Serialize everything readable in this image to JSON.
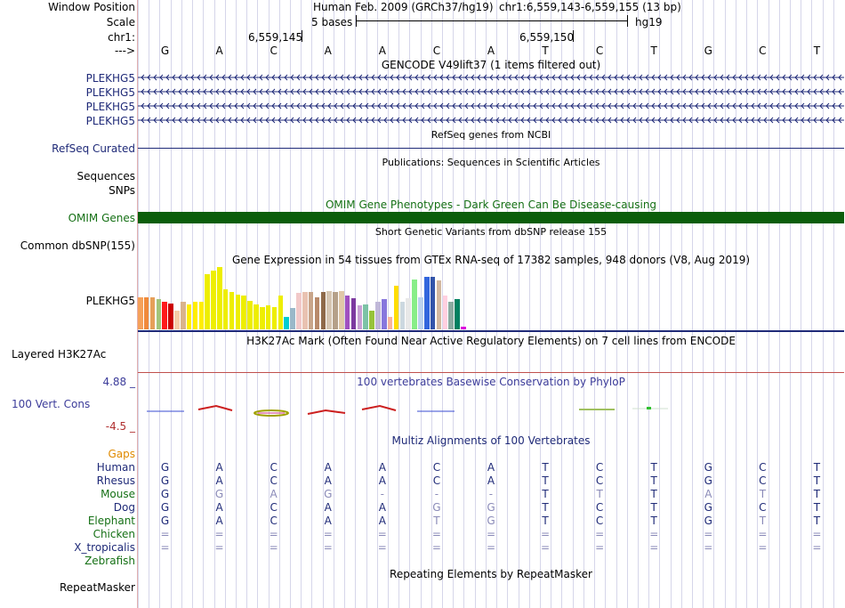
{
  "colors": {
    "navy": "#1f2a78",
    "omim_green": "#0b5e0b",
    "gaps_orange": "#e08a00",
    "green_label": "#157015",
    "red_line": "#c0504d",
    "phylop_label": "#3c3c9a",
    "grid": "#d6d6ea"
  },
  "labels": {
    "window_position": "Window Position",
    "scale": "Scale",
    "chrom": "chr1:",
    "arrow": "--->",
    "gencode_rows": [
      "PLEKHG5",
      "PLEKHG5",
      "PLEKHG5",
      "PLEKHG5"
    ],
    "refseq": "RefSeq Curated",
    "sequences": "Sequences",
    "snps": "SNPs",
    "omim": "OMIM Genes",
    "dbsnp": "Common dbSNP(155)",
    "gtex_gene": "PLEKHG5",
    "h3k27ac": "Layered H3K27Ac",
    "phylop_max": "4.88 _",
    "phylop_label": "100 Vert. Cons",
    "phylop_min": "-4.5 _",
    "gaps": "Gaps",
    "repeatmasker": "RepeatMasker"
  },
  "header": {
    "assembly": "Human Feb. 2009 (GRCh37/hg19)",
    "position": "chr1:6,559,143-6,559,155 (13 bp)",
    "scale_text": "5 bases",
    "db": "hg19",
    "coord1": "6,559,145",
    "coord2": "6,559,150"
  },
  "bases": [
    "G",
    "A",
    "C",
    "A",
    "A",
    "C",
    "A",
    "T",
    "C",
    "T",
    "G",
    "C",
    "T"
  ],
  "tracks": {
    "gencode_title": "GENCODE V49lift37 (1 items filtered out)",
    "refseq_title": "RefSeq genes from NCBI",
    "pubs_title": "Publications: Sequences in Scientific Articles",
    "omim_title": "OMIM Gene Phenotypes - Dark Green Can Be Disease-causing",
    "dbsnp_title": "Short Genetic Variants from dbSNP release 155",
    "gtex_title": "Gene Expression in 54 tissues from GTEx RNA-seq of 17382 samples, 948 donors (V8, Aug 2019)",
    "h3k27ac_title": "H3K27Ac Mark (Often Found Near Active Regulatory Elements) on 7 cell lines from ENCODE",
    "phylop_title": "100 vertebrates Basewise Conservation by PhyloP",
    "multiz_title": "Multiz Alignments of 100 Vertebrates",
    "repeat_title": "Repeating Elements by RepeatMasker"
  },
  "gtex_levels": [
    0.52,
    0.52,
    0.52,
    0.48,
    0.44,
    0.42,
    0.3,
    0.45,
    0.4,
    0.44,
    0.44,
    0.88,
    0.95,
    1.0,
    0.64,
    0.6,
    0.56,
    0.54,
    0.46,
    0.4,
    0.36,
    0.38,
    0.36,
    0.54,
    0.2,
    0.34,
    0.58,
    0.6,
    0.6,
    0.52,
    0.6,
    0.62,
    0.6,
    0.62,
    0.54,
    0.5,
    0.38,
    0.4,
    0.3,
    0.44,
    0.48,
    0.2,
    0.7,
    0.45,
    0.5,
    0.8,
    0.52,
    0.85,
    0.84,
    0.78,
    0.54,
    0.44,
    0.48,
    0.04
  ],
  "gtex_colors": [
    "#f5a15a",
    "#f08a3a",
    "#e6a05a",
    "#a3c47a",
    "#ff1a1a",
    "#cc0000",
    "#f5cba7",
    "#d9b38c",
    "#ffee00",
    "#ffee00",
    "#ffee00",
    "#eeee00",
    "#eeee00",
    "#eeee00",
    "#eeee00",
    "#eeee00",
    "#eeee00",
    "#eeee00",
    "#eeee00",
    "#eeee00",
    "#eeee00",
    "#eeee00",
    "#eeee00",
    "#eeee00",
    "#00cdd1",
    "#9ab8c9",
    "#f2c9c9",
    "#e9c2b1",
    "#c8a58a",
    "#b88a6b",
    "#8f6a4a",
    "#d6c6b2",
    "#b5a089",
    "#e0c8a8",
    "#a050c0",
    "#7d3aa0",
    "#c8a0d4",
    "#7cc2a6",
    "#97c33a",
    "#c0b8d8",
    "#8877dd",
    "#f8b5a0",
    "#ffdd00",
    "#ccd8e0",
    "#e8e8e8",
    "#88ee88",
    "#bcd2ee",
    "#3366dd",
    "#3355aa",
    "#d2b8a0",
    "#ffd0e0",
    "#8aaaa0",
    "#008060",
    "#dd00dd"
  ],
  "phylop_glyphs": [
    {
      "shape": "blue-line"
    },
    {
      "shape": "red-cap"
    },
    {
      "shape": "yellow-blob"
    },
    {
      "shape": "red-cap-small"
    },
    {
      "shape": "red-cap"
    },
    {
      "shape": "blue-line"
    },
    {
      "shape": "green-line"
    },
    {
      "shape": "green-dash"
    }
  ],
  "multiz": [
    {
      "species": "Human",
      "color": "#1f2a78",
      "bases": [
        "G",
        "A",
        "C",
        "A",
        "A",
        "C",
        "A",
        "T",
        "C",
        "T",
        "G",
        "C",
        "T"
      ]
    },
    {
      "species": "Rhesus",
      "color": "#1f2a78",
      "bases": [
        "G",
        "A",
        "C",
        "A",
        "A",
        "C",
        "A",
        "T",
        "C",
        "T",
        "G",
        "C",
        "T"
      ]
    },
    {
      "species": "Mouse",
      "color": "#157015",
      "bases": [
        "G",
        "G",
        "A",
        "G",
        "-",
        "-",
        "-",
        "T",
        "T",
        "T",
        "A",
        "T",
        "T"
      ],
      "gray": [
        1,
        2,
        3,
        4,
        5,
        6,
        8,
        10,
        11
      ]
    },
    {
      "species": "Dog",
      "color": "#1f2a78",
      "bases": [
        "G",
        "A",
        "C",
        "A",
        "A",
        "G",
        "G",
        "T",
        "C",
        "T",
        "G",
        "C",
        "T"
      ],
      "gray": [
        5,
        6
      ]
    },
    {
      "species": "Elephant",
      "color": "#157015",
      "bases": [
        "G",
        "A",
        "C",
        "A",
        "A",
        "T",
        "G",
        "T",
        "C",
        "T",
        "G",
        "T",
        "T"
      ],
      "gray": [
        5,
        6,
        11
      ]
    },
    {
      "species": "Chicken",
      "color": "#157015",
      "bases": [
        "=",
        "=",
        "=",
        "=",
        "=",
        "=",
        "=",
        "=",
        "=",
        "=",
        "=",
        "=",
        "="
      ],
      "gray": [
        0,
        1,
        2,
        3,
        4,
        5,
        6,
        7,
        8,
        9,
        10,
        11,
        12
      ]
    },
    {
      "species": "X_tropicalis",
      "color": "#1f2a78",
      "bases": [
        "=",
        "=",
        "=",
        "=",
        "=",
        "=",
        "=",
        "=",
        "=",
        "=",
        "=",
        "=",
        "="
      ],
      "gray": [
        0,
        1,
        2,
        3,
        4,
        5,
        6,
        7,
        8,
        9,
        10,
        11,
        12
      ]
    },
    {
      "species": "Zebrafish",
      "color": "#157015",
      "bases": []
    }
  ]
}
